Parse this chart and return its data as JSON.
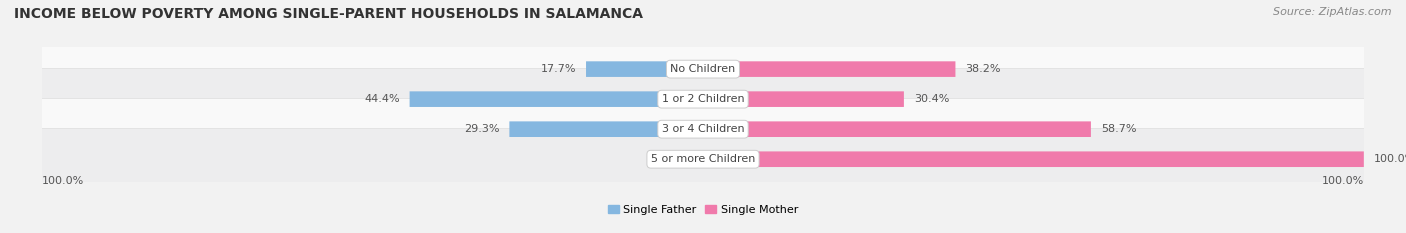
{
  "title": "INCOME BELOW POVERTY AMONG SINGLE-PARENT HOUSEHOLDS IN SALAMANCA",
  "source": "Source: ZipAtlas.com",
  "categories": [
    "No Children",
    "1 or 2 Children",
    "3 or 4 Children",
    "5 or more Children"
  ],
  "single_father": [
    17.7,
    44.4,
    29.3,
    0.0
  ],
  "single_mother": [
    38.2,
    30.4,
    58.7,
    100.0
  ],
  "father_color": "#85b7e0",
  "mother_color": "#f07aab",
  "label_color": "#555555",
  "bg_color": "#f2f2f2",
  "row_colors": [
    "#f9f9f9",
    "#ededee"
  ],
  "max_val": 100.0,
  "title_fontsize": 10,
  "source_fontsize": 8,
  "bar_label_fontsize": 8,
  "cat_label_fontsize": 8,
  "legend_fontsize": 8,
  "axis_label": "100.0%"
}
